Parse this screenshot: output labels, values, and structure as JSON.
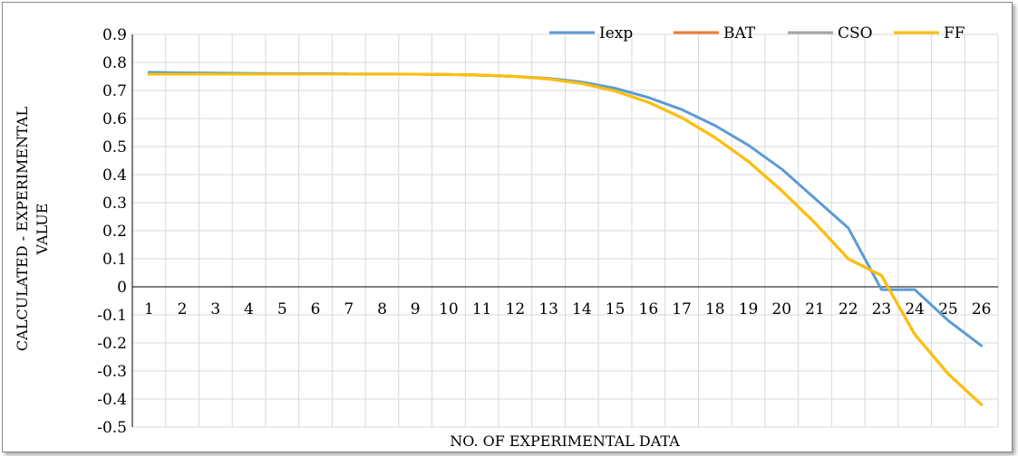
{
  "chart_data": {
    "type": "line",
    "title": "",
    "xlabel": "NO. OF EXPERIMENTAL DATA",
    "ylabel": "CALCULATED - EXPERIMENTAL VALUE",
    "categories": [
      "1",
      "2",
      "3",
      "4",
      "5",
      "6",
      "7",
      "8",
      "9",
      "10",
      "11",
      "12",
      "13",
      "14",
      "15",
      "16",
      "17",
      "18",
      "19",
      "20",
      "21",
      "22",
      "23",
      "24",
      "25",
      "26"
    ],
    "ylim": [
      -0.5,
      0.9
    ],
    "yticks": [
      0.9,
      0.8,
      0.7,
      0.6,
      0.5,
      0.4,
      0.3,
      0.2,
      0.1,
      0,
      -0.1,
      -0.2,
      -0.3,
      -0.4,
      -0.5
    ],
    "ytick_labels": [
      "0.9",
      "0.8",
      "0.7",
      "0.6",
      "0.5",
      "0.4",
      "0.3",
      "0.2",
      "0.1",
      "0",
      "-0.1",
      "-0.2",
      "-0.3",
      "-0.4",
      "-0.5"
    ],
    "grid": true,
    "legend_position": "top-right",
    "series": [
      {
        "name": "Iexp",
        "color": "#5b9bd5",
        "values": [
          0.765,
          0.763,
          0.762,
          0.761,
          0.76,
          0.76,
          0.759,
          0.759,
          0.758,
          0.757,
          0.754,
          0.75,
          0.743,
          0.73,
          0.708,
          0.675,
          0.632,
          0.575,
          0.505,
          0.42,
          0.315,
          0.21,
          -0.01,
          -0.01,
          -0.12,
          -0.21
        ]
      },
      {
        "name": "BAT",
        "color": "#ed7d31",
        "values": [
          0.758,
          0.758,
          0.758,
          0.758,
          0.758,
          0.758,
          0.758,
          0.758,
          0.758,
          0.757,
          0.755,
          0.75,
          0.741,
          0.725,
          0.698,
          0.658,
          0.603,
          0.532,
          0.447,
          0.343,
          0.228,
          0.1,
          0.04,
          -0.17,
          -0.31,
          -0.42
        ]
      },
      {
        "name": "CSO",
        "color": "#a5a5a5",
        "values": [
          0.758,
          0.758,
          0.758,
          0.758,
          0.758,
          0.758,
          0.758,
          0.758,
          0.758,
          0.757,
          0.755,
          0.75,
          0.741,
          0.725,
          0.698,
          0.658,
          0.603,
          0.532,
          0.447,
          0.343,
          0.228,
          0.1,
          0.04,
          -0.17,
          -0.31,
          -0.42
        ]
      },
      {
        "name": "FF",
        "color": "#ffc000",
        "values": [
          0.758,
          0.758,
          0.758,
          0.758,
          0.758,
          0.758,
          0.758,
          0.758,
          0.758,
          0.757,
          0.755,
          0.75,
          0.741,
          0.725,
          0.698,
          0.658,
          0.603,
          0.532,
          0.447,
          0.343,
          0.228,
          0.1,
          0.04,
          -0.17,
          -0.31,
          -0.42
        ]
      }
    ]
  }
}
